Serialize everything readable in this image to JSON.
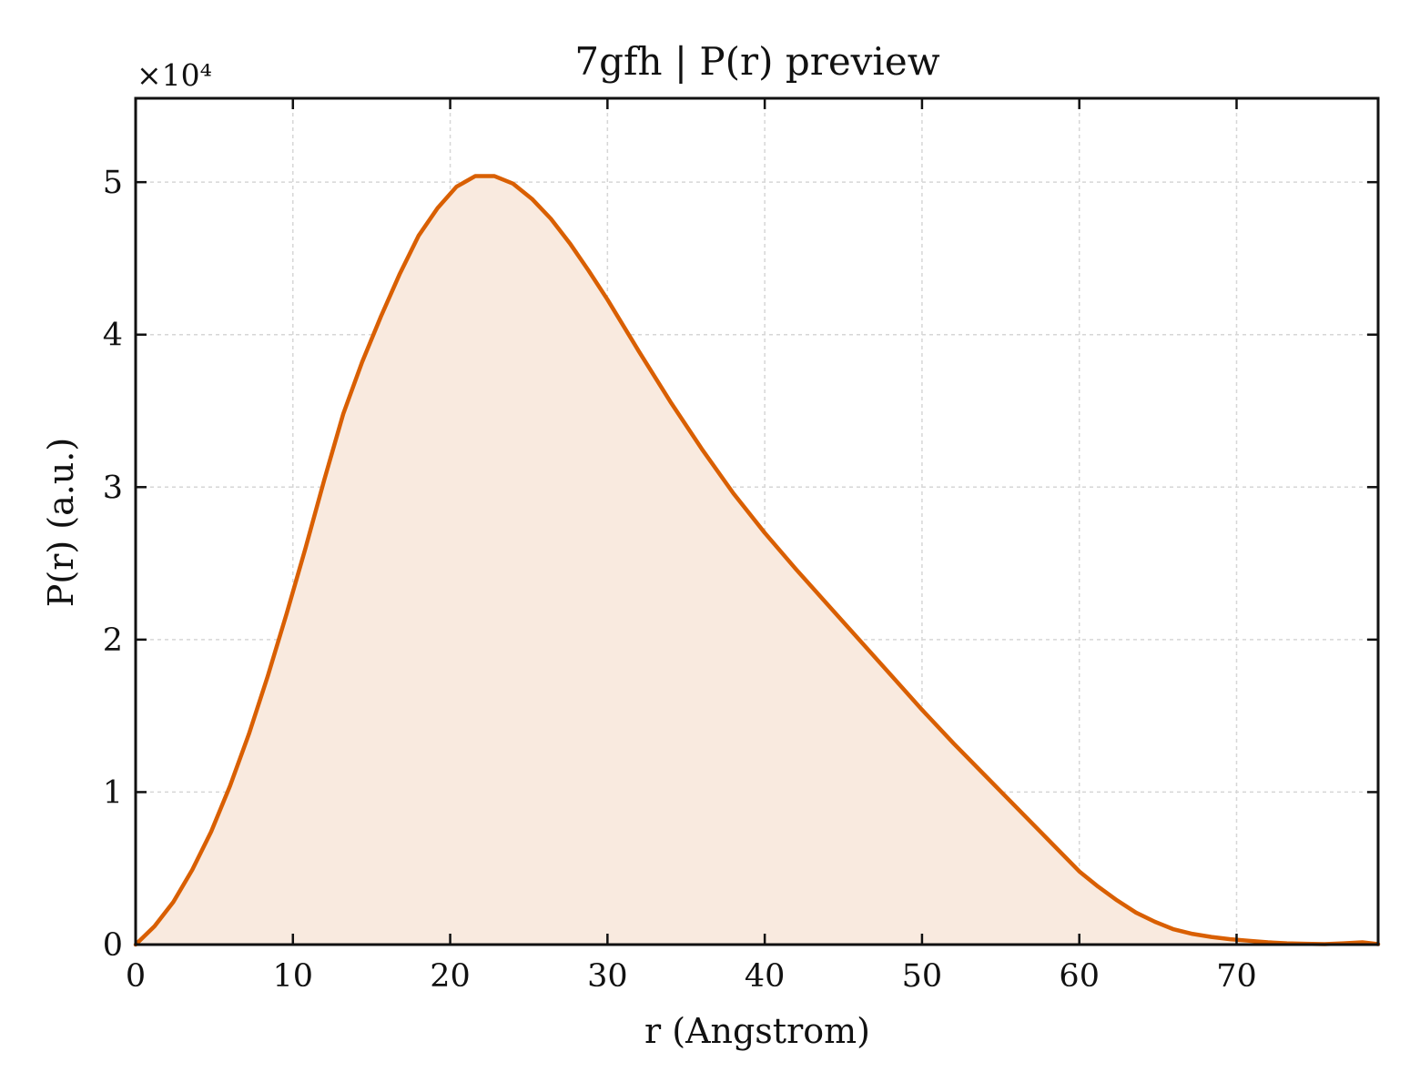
{
  "chart_data": {
    "type": "area",
    "title": "7gfh | P(r) preview",
    "xlabel": "r (Angstrom)",
    "ylabel": "P(r) (a.u.)",
    "y_offset_label": "×10⁴",
    "xlim": [
      0,
      79
    ],
    "ylim": [
      0,
      55500
    ],
    "xticks": [
      0,
      10,
      20,
      30,
      40,
      50,
      60,
      70
    ],
    "yticks": [
      0,
      10000,
      20000,
      30000,
      40000,
      50000
    ],
    "ytick_labels": [
      "0",
      "1",
      "2",
      "3",
      "4",
      "5"
    ],
    "grid": true,
    "line_color": "#d95f02",
    "fill_color": "#f9eadf",
    "series": [
      {
        "x": [
          0,
          1.2,
          2.4,
          3.6,
          4.8,
          6.0,
          7.2,
          8.4,
          9.6,
          10.8,
          12.0,
          13.2,
          14.4,
          15.6,
          16.8,
          18.0,
          19.2,
          20.4,
          21.6,
          22.8,
          24.0,
          25.2,
          26.4,
          27.6,
          28.8,
          30.0,
          32.0,
          34.0,
          36.0,
          38.0,
          40.0,
          42.0,
          44.0,
          46.0,
          48.0,
          50.0,
          52.0,
          54.0,
          56.0,
          58.0,
          60.0,
          61.2,
          62.4,
          63.6,
          64.8,
          66.0,
          67.2,
          68.4,
          69.6,
          70.8,
          72.0,
          73.2,
          74.4,
          75.6,
          76.8,
          78.0,
          79.0
        ],
        "y": [
          0,
          1200,
          2800,
          4900,
          7400,
          10400,
          13800,
          17600,
          21700,
          26000,
          30500,
          34800,
          38200,
          41200,
          44000,
          46500,
          48300,
          49700,
          50400,
          50400,
          49900,
          48900,
          47600,
          46000,
          44200,
          42300,
          38900,
          35600,
          32500,
          29600,
          27000,
          24600,
          22300,
          20000,
          17700,
          15400,
          13200,
          11100,
          9000,
          6900,
          4800,
          3800,
          2900,
          2100,
          1500,
          1000,
          700,
          500,
          350,
          250,
          150,
          80,
          50,
          30,
          80,
          150,
          30
        ]
      }
    ]
  }
}
